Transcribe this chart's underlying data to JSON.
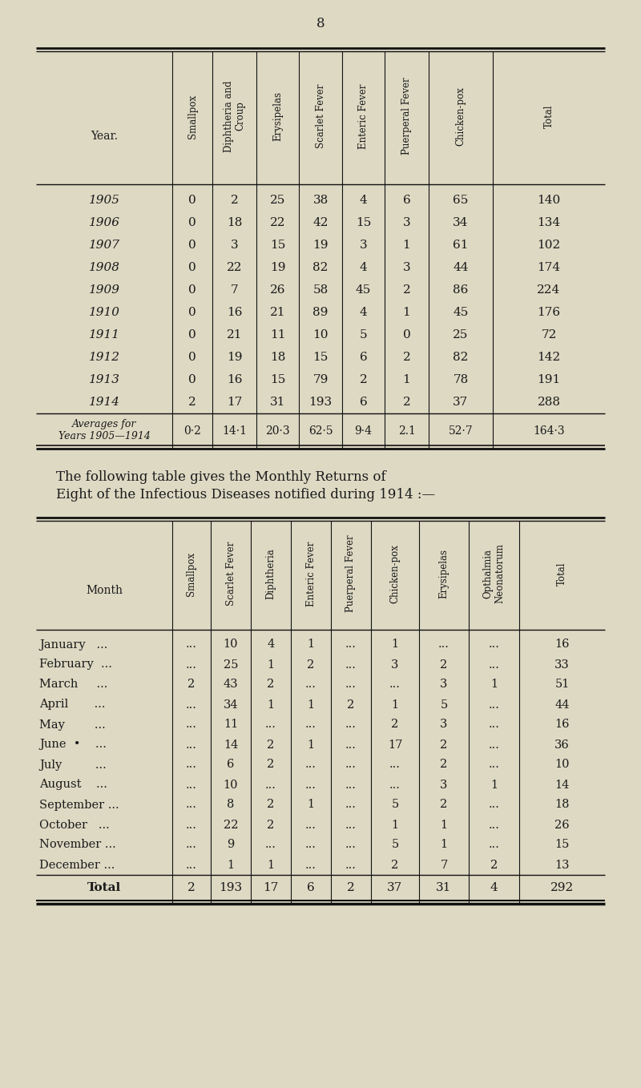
{
  "page_number": "8",
  "bg_color": "#ddd9c3",
  "text_color": "#1a1a1a",
  "fig_w": 8.0,
  "fig_h": 13.58,
  "dpi": 100,
  "table1": {
    "title_row": [
      "Year.",
      "Smallpox",
      "Diphtheria and\nCroup",
      "Erysipelas",
      "Scarlet Fever",
      "Enteric Fever",
      "Puerperal Fever",
      "Chicken-pox",
      "Total"
    ],
    "rows": [
      [
        "1905",
        "0",
        "2",
        "25",
        "38",
        "4",
        "6",
        "65",
        "140"
      ],
      [
        "1906",
        "0",
        "18",
        "22",
        "42",
        "15",
        "3",
        "34",
        "134"
      ],
      [
        "1907",
        "0",
        "3",
        "15",
        "19",
        "3",
        "1",
        "61",
        "102"
      ],
      [
        "1908",
        "0",
        "22",
        "19",
        "82",
        "4",
        "3",
        "44",
        "174"
      ],
      [
        "1909",
        "0",
        "7",
        "26",
        "58",
        "45",
        "2",
        "86",
        "224"
      ],
      [
        "1910",
        "0",
        "16",
        "21",
        "89",
        "4",
        "1",
        "45",
        "176"
      ],
      [
        "1911",
        "0",
        "21",
        "11",
        "10",
        "5",
        "0",
        "25",
        "72"
      ],
      [
        "1912",
        "0",
        "19",
        "18",
        "15",
        "6",
        "2",
        "82",
        "142"
      ],
      [
        "1913",
        "0",
        "16",
        "15",
        "79",
        "2",
        "1",
        "78",
        "191"
      ],
      [
        "1914",
        "2",
        "17",
        "31",
        "193",
        "6",
        "2",
        "37",
        "288"
      ]
    ],
    "avg_row": [
      "Averages for\nYears 1905—1914",
      "0·2",
      "14·1",
      "20·3",
      "62·5",
      "9·4",
      "2.1",
      "52·7",
      "164·3"
    ]
  },
  "middle_text_line1": "The following table gives the Monthly Returns of",
  "middle_text_line2": "Eight of the Infectious Diseases notified during 1914 :—",
  "table2": {
    "title_row": [
      "Month",
      "Smallpox",
      "Scarlet Fever",
      "Diphtheria",
      "Enteric Fever",
      "Puerperal Fever",
      "Chicken-pox",
      "Erysipelas",
      "Opthalmia\nNeonatorum",
      "Total"
    ],
    "rows": [
      [
        "January   ...",
        "...",
        "10",
        "4",
        "1",
        "...",
        "1",
        "...",
        "...",
        "16"
      ],
      [
        "February  ...",
        "...",
        "25",
        "1",
        "2",
        "...",
        "3",
        "2",
        "...",
        "33"
      ],
      [
        "March     ...",
        "2",
        "43",
        "2",
        "...",
        "...",
        "...",
        "3",
        "1",
        "51"
      ],
      [
        "April       ...",
        "...",
        "34",
        "1",
        "1",
        "2",
        "1",
        "5",
        "...",
        "44"
      ],
      [
        "May        ...",
        "...",
        "11",
        "...",
        "...",
        "...",
        "2",
        "3",
        "...",
        "16"
      ],
      [
        "June  •    ...",
        "...",
        "14",
        "2",
        "1",
        "...",
        "17",
        "2",
        "...",
        "36"
      ],
      [
        "July         ...",
        "...",
        "6",
        "2",
        "...",
        "...",
        "...",
        "2",
        "...",
        "10"
      ],
      [
        "August    ...",
        "...",
        "10",
        "...",
        "...",
        "...",
        "...",
        "3",
        "1",
        "14"
      ],
      [
        "September ...",
        "...",
        "8",
        "2",
        "1",
        "...",
        "5",
        "2",
        "...",
        "18"
      ],
      [
        "October   ...",
        "...",
        "22",
        "2",
        "...",
        "...",
        "1",
        "1",
        "...",
        "26"
      ],
      [
        "November ...",
        "...",
        "9",
        "...",
        "...",
        "...",
        "5",
        "1",
        "...",
        "15"
      ],
      [
        "December ...",
        "...",
        "1",
        "1",
        "...",
        "...",
        "2",
        "7",
        "2",
        "13"
      ]
    ],
    "total_row": [
      "Total",
      "2",
      "193",
      "17",
      "6",
      "2",
      "37",
      "31",
      "4",
      "292"
    ]
  }
}
